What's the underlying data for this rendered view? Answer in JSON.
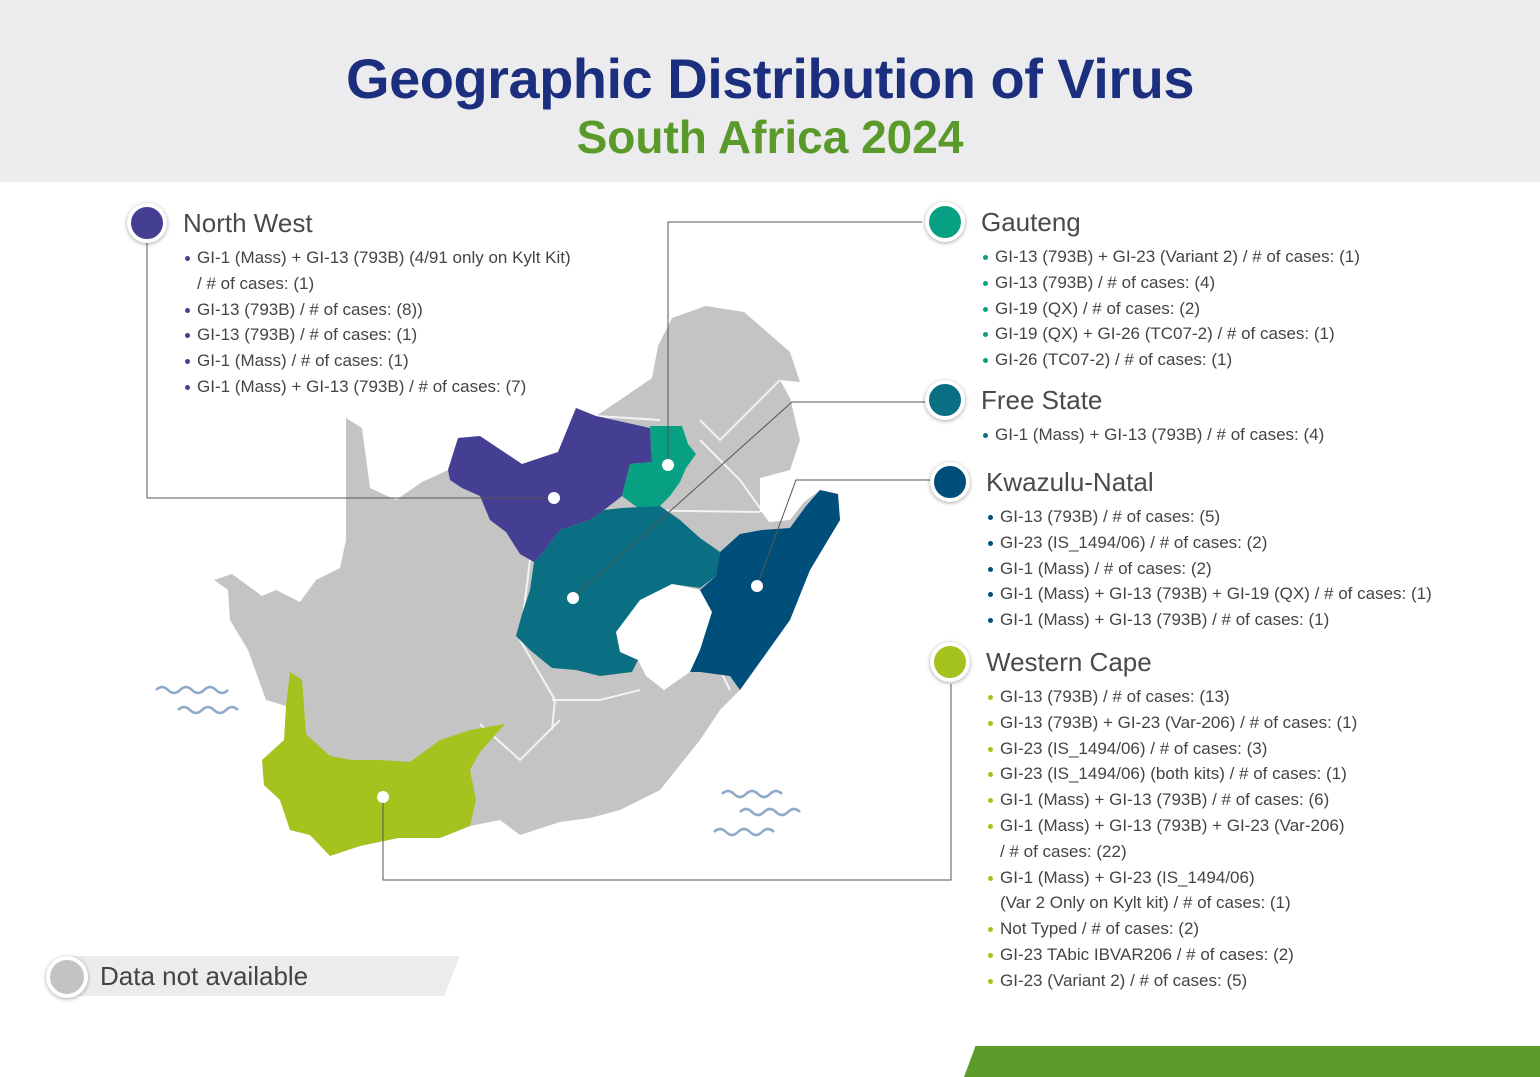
{
  "header": {
    "title": "Geographic Distribution of Virus",
    "subtitle": "South Africa 2024"
  },
  "colors": {
    "north_west": "#443f92",
    "gauteng": "#08a082",
    "free_state": "#0a6f82",
    "kwazulu_natal": "#004f7a",
    "western_cape": "#a4c31f",
    "not_available": "#c3c3c3",
    "title": "#1c2f7e",
    "subtitle": "#5a9a2a"
  },
  "regions": {
    "north_west": {
      "name": "North West",
      "items": [
        [
          "GI-1 (Mass) + GI-13 (793B) (4/91 only on Kylt Kit)",
          "/ # of cases: (1)"
        ],
        [
          "GI-13 (793B) / # of cases: (8))"
        ],
        [
          "GI-13 (793B) / # of cases: (1)"
        ],
        [
          "GI-1 (Mass) / # of cases: (1)"
        ],
        [
          "GI-1 (Mass) + GI-13 (793B) / # of cases: (7)"
        ]
      ]
    },
    "gauteng": {
      "name": "Gauteng",
      "items": [
        [
          "GI-13 (793B) + GI-23 (Variant 2) / # of cases: (1)"
        ],
        [
          "GI-13 (793B) / # of cases: (4)"
        ],
        [
          "GI-19 (QX) / # of cases: (2)"
        ],
        [
          "GI-19 (QX) + GI-26 (TC07-2) / # of cases: (1)"
        ],
        [
          "GI-26 (TC07-2) / # of cases: (1)"
        ]
      ]
    },
    "free_state": {
      "name": "Free State",
      "items": [
        [
          "GI-1 (Mass) + GI-13 (793B) / # of cases: (4)"
        ]
      ]
    },
    "kwazulu_natal": {
      "name": "Kwazulu-Natal",
      "items": [
        [
          "GI-13 (793B) / # of cases: (5)"
        ],
        [
          "GI-23 (IS_1494/06) / # of cases: (2)"
        ],
        [
          "GI-1 (Mass) / # of cases: (2)"
        ],
        [
          "GI-1 (Mass) + GI-13 (793B) + GI-19 (QX) / # of cases: (1)"
        ],
        [
          "GI-1 (Mass) + GI-13 (793B) / # of cases: (1)"
        ]
      ]
    },
    "western_cape": {
      "name": "Western Cape",
      "items": [
        [
          "GI-13 (793B) / # of cases: (13)"
        ],
        [
          "GI-13 (793B) + GI-23 (Var-206) / # of cases: (1)"
        ],
        [
          "GI-23 (IS_1494/06) / # of cases: (3)"
        ],
        [
          "GI-23 (IS_1494/06) (both kits) / # of cases: (1)"
        ],
        [
          "GI-1 (Mass) + GI-13 (793B) / # of cases: (6)"
        ],
        [
          "GI-1 (Mass) + GI-13 (793B) + GI-23 (Var-206)",
          "/ # of cases: (22)"
        ],
        [
          "GI-1 (Mass) + GI-23 (IS_1494/06)",
          "(Var 2 Only on Kylt kit) / # of cases: (1)"
        ],
        [
          "Not Typed / # of cases: (2)"
        ],
        [
          "GI-23 TAbic IBVAR206 / # of cases: (2)"
        ],
        [
          "GI-23 (Variant 2) / # of cases: (5)"
        ]
      ]
    }
  },
  "legend": {
    "label": "Data not available"
  }
}
